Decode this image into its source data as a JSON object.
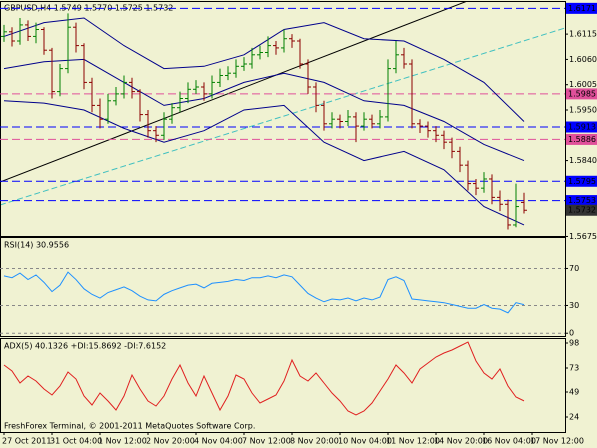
{
  "chart_data": [
    {
      "type": "ohlc",
      "title": "GBPUSD,H4  1.5749 1.5770 1.5725 1.5732",
      "up_color": "#008000",
      "down_color": "#8b0000",
      "open": [
        1.611,
        1.612,
        1.61,
        1.6135,
        1.611,
        1.6125,
        1.608,
        1.599,
        1.604,
        1.613,
        1.609,
        1.601,
        1.596,
        1.593,
        1.597,
        1.5985,
        1.601,
        1.599,
        1.594,
        1.5905,
        1.5895,
        1.593,
        1.5955,
        1.5975,
        1.5995,
        1.6,
        1.5985,
        1.601,
        1.6025,
        1.603,
        1.6045,
        1.605,
        1.607,
        1.6075,
        1.609,
        1.6085,
        1.6105,
        1.61,
        1.605,
        1.6,
        1.596,
        1.592,
        1.593,
        1.5925,
        1.5935,
        1.5915,
        1.593,
        1.592,
        1.5935,
        1.604,
        1.607,
        1.605,
        1.592,
        1.5915,
        1.5905,
        1.5895,
        1.588,
        1.586,
        1.583,
        1.579,
        1.578,
        1.58,
        1.576,
        1.5745,
        1.57,
        1.5749
      ],
      "high": [
        1.6135,
        1.613,
        1.615,
        1.6145,
        1.614,
        1.613,
        1.6085,
        1.605,
        1.616,
        1.614,
        1.6095,
        1.602,
        1.5975,
        1.5985,
        1.6,
        1.6025,
        1.602,
        1.5995,
        1.595,
        1.5915,
        1.5945,
        1.5965,
        1.599,
        1.601,
        1.6015,
        1.601,
        1.6025,
        1.604,
        1.6045,
        1.606,
        1.6065,
        1.6085,
        1.609,
        1.611,
        1.61,
        1.6125,
        1.6115,
        1.6105,
        1.606,
        1.601,
        1.597,
        1.5945,
        1.594,
        1.595,
        1.5945,
        1.5945,
        1.594,
        1.595,
        1.606,
        1.61,
        1.6085,
        1.606,
        1.593,
        1.5925,
        1.5915,
        1.5905,
        1.589,
        1.587,
        1.584,
        1.58,
        1.5815,
        1.581,
        1.5775,
        1.5755,
        1.579,
        1.577
      ],
      "low": [
        1.6098,
        1.6088,
        1.6092,
        1.61,
        1.6095,
        1.607,
        1.5975,
        1.598,
        1.603,
        1.6075,
        1.5995,
        1.5945,
        1.591,
        1.592,
        1.596,
        1.5975,
        1.5975,
        1.5925,
        1.589,
        1.588,
        1.5885,
        1.592,
        1.5945,
        1.5965,
        1.5985,
        1.597,
        1.5975,
        1.6,
        1.6015,
        1.602,
        1.6035,
        1.604,
        1.606,
        1.6065,
        1.607,
        1.6075,
        1.6085,
        1.604,
        1.5985,
        1.5945,
        1.5905,
        1.591,
        1.591,
        1.5915,
        1.588,
        1.5905,
        1.591,
        1.591,
        1.5925,
        1.603,
        1.604,
        1.591,
        1.59,
        1.589,
        1.588,
        1.5865,
        1.5845,
        1.5815,
        1.5775,
        1.5765,
        1.577,
        1.5745,
        1.573,
        1.569,
        1.5695,
        1.5725
      ],
      "close": [
        1.612,
        1.61,
        1.6135,
        1.611,
        1.6125,
        1.608,
        1.599,
        1.604,
        1.613,
        1.609,
        1.601,
        1.596,
        1.593,
        1.597,
        1.5985,
        1.601,
        1.599,
        1.594,
        1.5905,
        1.5895,
        1.593,
        1.5955,
        1.5975,
        1.5995,
        1.6,
        1.5985,
        1.601,
        1.6025,
        1.603,
        1.6045,
        1.605,
        1.607,
        1.6075,
        1.609,
        1.6085,
        1.6105,
        1.61,
        1.605,
        1.6,
        1.596,
        1.592,
        1.593,
        1.5925,
        1.5935,
        1.5915,
        1.593,
        1.592,
        1.5935,
        1.604,
        1.607,
        1.605,
        1.592,
        1.5915,
        1.5905,
        1.5895,
        1.588,
        1.586,
        1.583,
        1.579,
        1.578,
        1.58,
        1.576,
        1.5745,
        1.57,
        1.574,
        1.5732
      ],
      "bands_x": [
        0,
        5,
        10,
        15,
        20,
        25,
        30,
        35,
        40,
        45,
        50,
        55,
        60,
        65
      ],
      "bands": [
        {
          "color": "#00008b",
          "values": [
            1.611,
            1.614,
            1.615,
            1.609,
            1.604,
            1.6045,
            1.607,
            1.6125,
            1.614,
            1.6105,
            1.61,
            1.606,
            1.601,
            1.5925
          ]
        },
        {
          "color": "#00008b",
          "values": [
            1.604,
            1.6055,
            1.606,
            1.601,
            1.596,
            1.5975,
            1.601,
            1.603,
            1.601,
            1.597,
            1.596,
            1.5925,
            1.5875,
            1.584
          ]
        },
        {
          "color": "#00008b",
          "values": [
            1.597,
            1.5965,
            1.595,
            1.591,
            1.588,
            1.5905,
            1.595,
            1.596,
            1.588,
            1.584,
            1.586,
            1.582,
            1.574,
            1.57
          ]
        }
      ],
      "levels": [
        {
          "value": 1.6171,
          "color": "#0000ff"
        },
        {
          "value": 1.5985,
          "color": "#e0509a"
        },
        {
          "value": 1.5913,
          "color": "#0000ff"
        },
        {
          "value": 1.5886,
          "color": "#e0509a"
        },
        {
          "value": 1.5795,
          "color": "#0000ff"
        },
        {
          "value": 1.5753,
          "color": "#0000ff"
        }
      ],
      "ylim": [
        1.5676,
        1.6187
      ],
      "yticks": [
        {
          "value": 1.6115,
          "label": "1.6115"
        },
        {
          "value": 1.606,
          "label": "1.6060"
        },
        {
          "value": 1.6005,
          "label": "1.6005"
        },
        {
          "value": 1.595,
          "label": "1.5950"
        },
        {
          "value": 1.584,
          "label": "1.5840"
        },
        {
          "value": 1.5675,
          "label": "1.5675"
        }
      ]
    },
    {
      "type": "line",
      "title": "RSI(14) 30.9556",
      "color": "#1e90ff",
      "level_lines": true,
      "values": [
        62,
        60,
        65,
        58,
        63,
        55,
        45,
        52,
        66,
        58,
        48,
        42,
        38,
        44,
        47,
        50,
        46,
        40,
        36,
        35,
        42,
        46,
        49,
        52,
        53,
        49,
        54,
        55,
        56,
        58,
        57,
        60,
        60,
        62,
        60,
        63,
        61,
        52,
        43,
        38,
        34,
        37,
        36,
        38,
        35,
        38,
        36,
        39,
        58,
        61,
        57,
        37,
        36,
        35,
        34,
        33,
        31,
        29,
        27,
        27,
        31,
        27,
        26,
        22,
        33,
        30.9556
      ],
      "ylim": [
        -3,
        104
      ],
      "yticks": [
        70,
        30,
        0
      ]
    },
    {
      "type": "line",
      "title": "ADX(5) 40.1326 +DI:15.8692 -DI:7.6152",
      "color": "#e02020",
      "level_lines": false,
      "values": [
        76,
        70,
        58,
        65,
        60,
        52,
        46,
        55,
        69,
        62,
        45,
        36,
        48,
        40,
        31,
        45,
        66,
        52,
        40,
        35,
        45,
        62,
        76,
        58,
        45,
        65,
        48,
        31,
        45,
        66,
        62,
        48,
        38,
        42,
        46,
        60,
        81,
        65,
        60,
        68,
        58,
        48,
        40,
        30,
        26,
        30,
        38,
        50,
        62,
        76,
        68,
        58,
        72,
        78,
        84,
        88,
        91,
        95,
        99,
        80,
        68,
        62,
        72,
        55,
        44,
        40.1326
      ],
      "ylim": [
        9,
        103
      ],
      "yticks": [
        98,
        73,
        49,
        24
      ],
      "xticks": [
        {
          "value": 0,
          "label": "27 Oct 2011"
        },
        {
          "value": 6,
          "label": "31 Oct 04:00"
        },
        {
          "value": 12,
          "label": "1 Nov 12:00"
        },
        {
          "value": 18,
          "label": "2 Nov 20:00"
        },
        {
          "value": 24,
          "label": "4 Nov 04:00"
        },
        {
          "value": 30,
          "label": "7 Nov 12:00"
        },
        {
          "value": 36,
          "label": "8 Nov 20:00"
        },
        {
          "value": 42,
          "label": "10 Nov 04:00"
        },
        {
          "value": 48,
          "label": "11 Nov 12:00"
        },
        {
          "value": 54,
          "label": "14 Nov 20:00"
        },
        {
          "value": 60,
          "label": "16 Nov 04:00"
        },
        {
          "value": 66,
          "label": "17 Nov 12:00"
        }
      ]
    }
  ],
  "footer": "FreshForex Terminal, © 2001-2011 MetaQuotes Software Corp."
}
